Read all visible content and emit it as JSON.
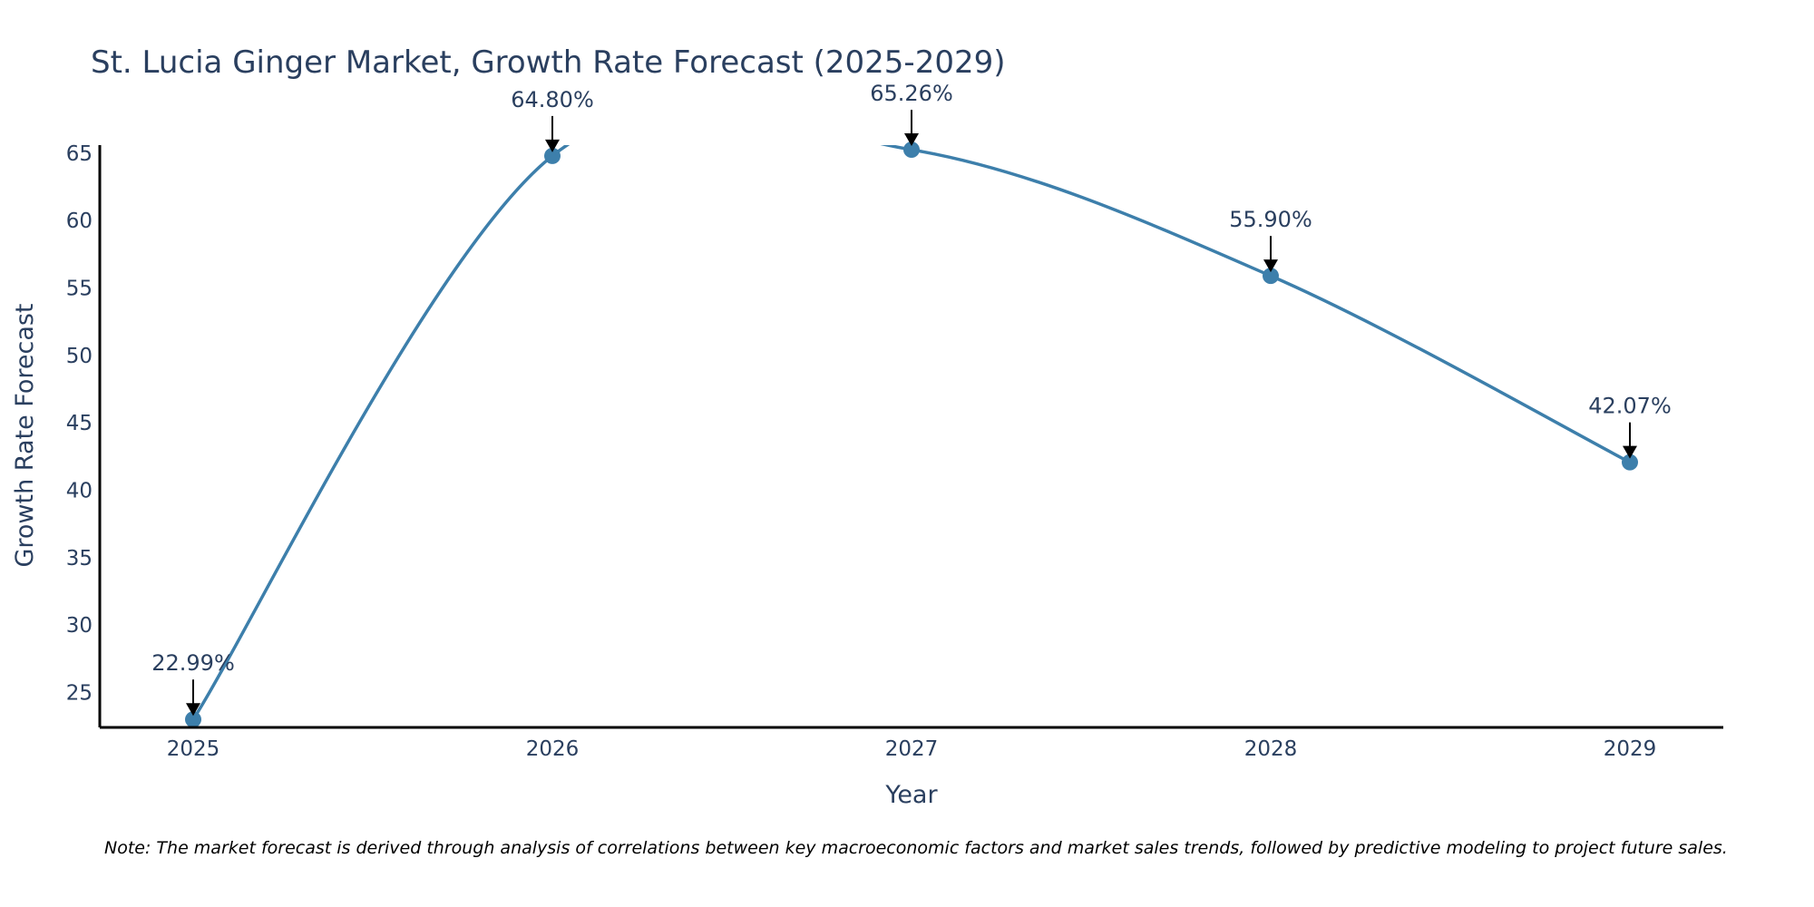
{
  "chart_data": {
    "type": "line",
    "title": "St. Lucia Ginger Market, Growth Rate Forecast (2025-2029)",
    "xlabel": "Year",
    "ylabel": "Growth Rate Forecast",
    "categories": [
      "2025",
      "2026",
      "2027",
      "2028",
      "2029"
    ],
    "values": [
      22.99,
      64.8,
      65.26,
      55.9,
      42.07
    ],
    "data_labels": [
      "22.99%",
      "64.80%",
      "65.26%",
      "55.90%",
      "42.07%"
    ],
    "ylim": [
      22.4,
      65.6
    ],
    "yticks": [
      25,
      30,
      35,
      40,
      45,
      50,
      55,
      60,
      65
    ],
    "ytick_labels": [
      "25",
      "30",
      "35",
      "40",
      "45",
      "50",
      "55",
      "60",
      "65"
    ],
    "grid": false,
    "line_shape": "spline",
    "colors": {
      "line": "#3d7fab",
      "marker": "#3d7fab",
      "arrow": "#000000",
      "axis": "#000000"
    },
    "note": "Note: The market forecast is derived through analysis of correlations between key macroeconomic factors and market sales trends, followed by predictive modeling to project future sales."
  }
}
